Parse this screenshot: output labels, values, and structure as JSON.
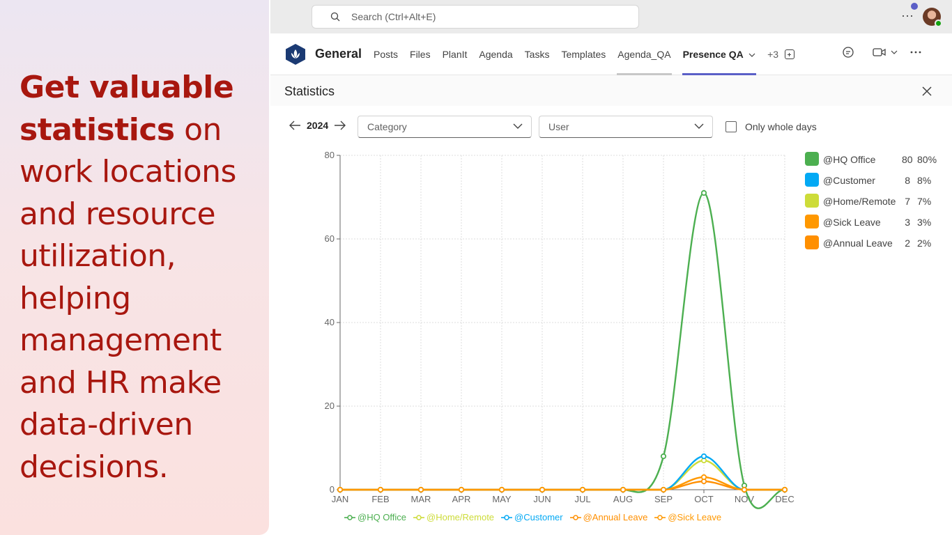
{
  "promo": {
    "bold_text": "Get valuable statistics",
    "rest_text": " on work locations and resource utilization, helping management and HR make data-driven decisions."
  },
  "topbar": {
    "search_placeholder": "Search (Ctrl+Alt+E)",
    "more_label": "···"
  },
  "tabbar": {
    "channel": "General",
    "tabs": [
      "Posts",
      "Files",
      "PlanIt",
      "Agenda",
      "Tasks",
      "Templates",
      "Agenda_QA",
      "Presence QA"
    ],
    "overflow": "+3"
  },
  "panel": {
    "title": "Statistics",
    "year": "2024",
    "category_placeholder": "Category",
    "user_placeholder": "User",
    "only_whole_days": "Only whole days"
  },
  "colors": {
    "hq_office": "#4caf50",
    "customer": "#03a9f4",
    "home_remote": "#cddc39",
    "sick_leave": "#ff9800",
    "annual_leave": "#ff8f00",
    "accent": "#5b5fc7"
  },
  "legend": [
    {
      "name": "@HQ Office",
      "count": "80",
      "pct": "80%",
      "color": "#4caf50"
    },
    {
      "name": "@Customer",
      "count": "8",
      "pct": "8%",
      "color": "#03a9f4"
    },
    {
      "name": "@Home/Remote",
      "count": "7",
      "pct": "7%",
      "color": "#cddc39"
    },
    {
      "name": "@Sick Leave",
      "count": "3",
      "pct": "3%",
      "color": "#ff9800"
    },
    {
      "name": "@Annual Leave",
      "count": "2",
      "pct": "2%",
      "color": "#ff8f00"
    }
  ],
  "chart_data": {
    "type": "line",
    "categories": [
      "JAN",
      "FEB",
      "MAR",
      "APR",
      "MAY",
      "JUN",
      "JUL",
      "AUG",
      "SEP",
      "OCT",
      "NOV",
      "DEC"
    ],
    "ylim": [
      0,
      80
    ],
    "yticks": [
      0,
      20,
      40,
      60,
      80
    ],
    "grid": true,
    "legend_position": "bottom",
    "series": [
      {
        "name": "@HQ Office",
        "color": "#4caf50",
        "values": [
          0,
          0,
          0,
          0,
          0,
          0,
          0,
          0,
          8,
          71,
          1,
          0
        ]
      },
      {
        "name": "@Home/Remote",
        "color": "#cddc39",
        "values": [
          0,
          0,
          0,
          0,
          0,
          0,
          0,
          0,
          0,
          7,
          0,
          0
        ]
      },
      {
        "name": "@Customer",
        "color": "#03a9f4",
        "values": [
          0,
          0,
          0,
          0,
          0,
          0,
          0,
          0,
          0,
          8,
          0,
          0
        ]
      },
      {
        "name": "@Annual Leave",
        "color": "#ff8f00",
        "values": [
          0,
          0,
          0,
          0,
          0,
          0,
          0,
          0,
          0,
          2,
          0,
          0
        ]
      },
      {
        "name": "@Sick Leave",
        "color": "#ff9800",
        "values": [
          0,
          0,
          0,
          0,
          0,
          0,
          0,
          0,
          0,
          3,
          0,
          0
        ]
      }
    ]
  }
}
